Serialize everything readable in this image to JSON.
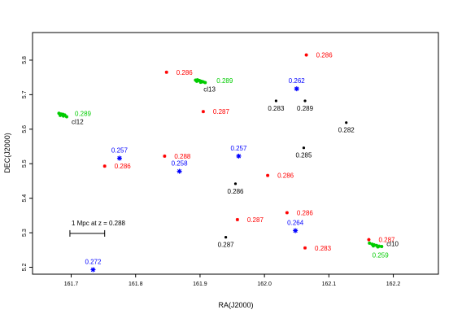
{
  "chart_data": {
    "type": "scatter",
    "xlabel": "RA(J2000)",
    "ylabel": "DEC(J2000)",
    "xlim": [
      161.64,
      162.27
    ],
    "ylim": [
      5.18,
      5.88
    ],
    "x_ticks": [
      161.7,
      161.8,
      161.9,
      162.0,
      162.1,
      162.2
    ],
    "x_tick_labels": [
      "161.7",
      "161.8",
      "161.9",
      "162.0",
      "162.1",
      "162.2"
    ],
    "y_ticks": [
      5.2,
      5.3,
      5.4,
      5.5,
      5.6,
      5.7,
      5.8
    ],
    "y_tick_labels": [
      "5.2",
      "5.3",
      "5.4",
      "5.5",
      "5.6",
      "5.7",
      "5.8"
    ],
    "grid": false,
    "colors": {
      "red": "#ff0000",
      "black": "#000000",
      "blue": "#0000ff",
      "green": "#00cc00"
    },
    "red_points": [
      {
        "x": 162.065,
        "y": 5.815,
        "label": "0.286"
      },
      {
        "x": 161.848,
        "y": 5.765,
        "label": "0.286"
      },
      {
        "x": 161.905,
        "y": 5.651,
        "label": "0.287"
      },
      {
        "x": 161.845,
        "y": 5.522,
        "label": "0.288"
      },
      {
        "x": 161.752,
        "y": 5.493,
        "label": "0.286"
      },
      {
        "x": 162.005,
        "y": 5.466,
        "label": "0.286"
      },
      {
        "x": 162.035,
        "y": 5.358,
        "label": "0.286"
      },
      {
        "x": 161.958,
        "y": 5.338,
        "label": "0.287"
      },
      {
        "x": 162.063,
        "y": 5.256,
        "label": "0.283"
      },
      {
        "x": 162.162,
        "y": 5.28,
        "label": "0.287"
      }
    ],
    "black_points": [
      {
        "x": 162.018,
        "y": 5.682,
        "label": "0.283"
      },
      {
        "x": 162.063,
        "y": 5.682,
        "label": "0.289"
      },
      {
        "x": 162.127,
        "y": 5.619,
        "label": "0.282"
      },
      {
        "x": 162.061,
        "y": 5.546,
        "label": "0.285"
      },
      {
        "x": 161.955,
        "y": 5.442,
        "label": "0.286"
      },
      {
        "x": 161.94,
        "y": 5.287,
        "label": "0.287"
      }
    ],
    "blue_points": [
      {
        "x": 162.05,
        "y": 5.717,
        "label": "0.262"
      },
      {
        "x": 161.775,
        "y": 5.516,
        "label": "0.257"
      },
      {
        "x": 161.96,
        "y": 5.522,
        "label": "0.257"
      },
      {
        "x": 161.868,
        "y": 5.478,
        "label": "0.258"
      },
      {
        "x": 162.048,
        "y": 5.306,
        "label": "0.264"
      },
      {
        "x": 161.734,
        "y": 5.193,
        "label": "0.272"
      }
    ],
    "green_clusters": [
      {
        "name": "cl13",
        "label": "0.289",
        "points": [
          {
            "x": 161.893,
            "y": 5.742
          },
          {
            "x": 161.896,
            "y": 5.743
          },
          {
            "x": 161.899,
            "y": 5.741
          },
          {
            "x": 161.902,
            "y": 5.739
          },
          {
            "x": 161.905,
            "y": 5.737
          },
          {
            "x": 161.908,
            "y": 5.735
          },
          {
            "x": 161.895,
            "y": 5.739
          },
          {
            "x": 161.901,
            "y": 5.736
          }
        ]
      },
      {
        "name": "cl12",
        "label": "0.289",
        "points": [
          {
            "x": 161.681,
            "y": 5.646
          },
          {
            "x": 161.684,
            "y": 5.644
          },
          {
            "x": 161.687,
            "y": 5.643
          },
          {
            "x": 161.69,
            "y": 5.641
          },
          {
            "x": 161.693,
            "y": 5.636
          },
          {
            "x": 161.683,
            "y": 5.64
          },
          {
            "x": 161.688,
            "y": 5.638
          }
        ]
      },
      {
        "name": "cl10",
        "label": "0.259",
        "points": [
          {
            "x": 162.163,
            "y": 5.27
          },
          {
            "x": 162.167,
            "y": 5.267
          },
          {
            "x": 162.17,
            "y": 5.265
          },
          {
            "x": 162.174,
            "y": 5.263
          },
          {
            "x": 162.178,
            "y": 5.261
          },
          {
            "x": 162.182,
            "y": 5.26
          },
          {
            "x": 162.169,
            "y": 5.262
          },
          {
            "x": 162.176,
            "y": 5.259
          }
        ]
      }
    ],
    "scale_bar": {
      "label": "1 Mpc at z = 0.288",
      "x_start": 161.698,
      "x_end": 161.752,
      "y": 5.298
    }
  }
}
